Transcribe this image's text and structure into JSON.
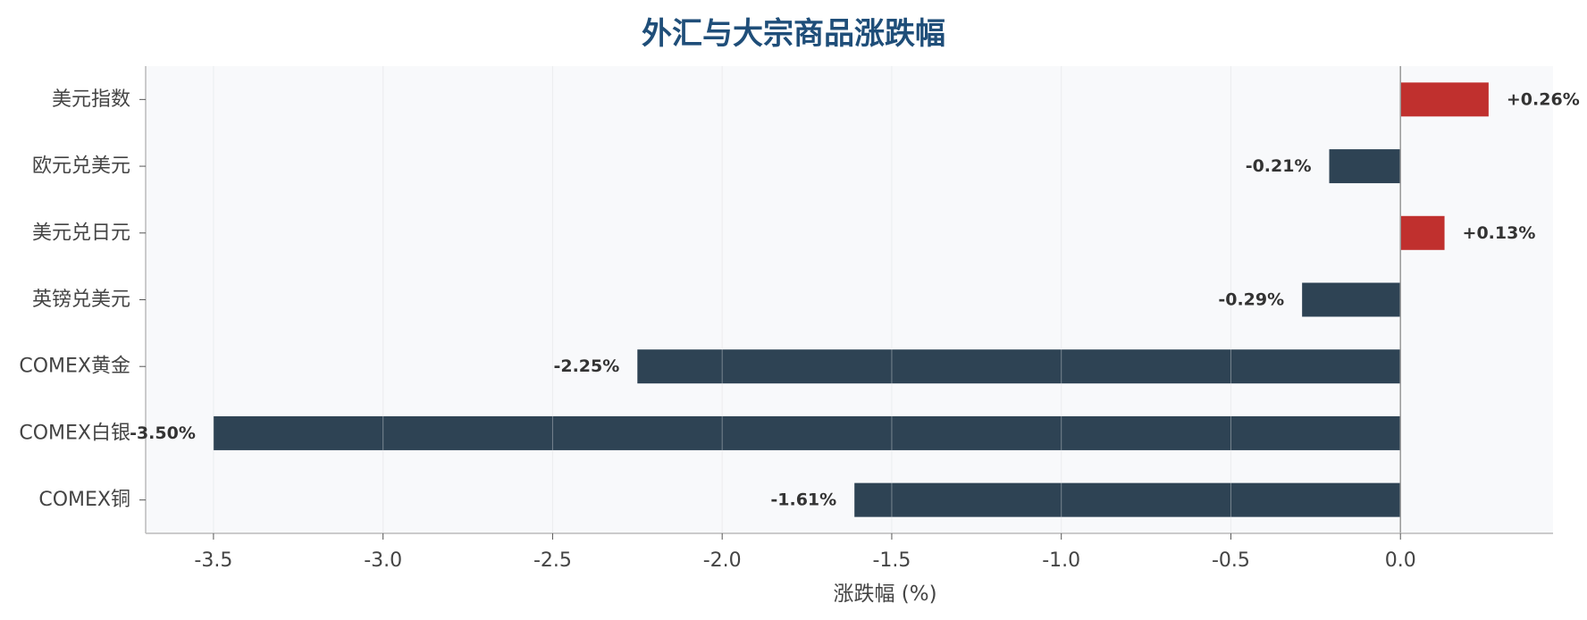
{
  "chart_data": {
    "type": "bar",
    "orientation": "horizontal",
    "title": "外汇与大宗商品涨跌幅",
    "xlabel": "涨跌幅 (%)",
    "ylabel": "",
    "categories": [
      "美元指数",
      "欧元兑美元",
      "美元兑日元",
      "英镑兑美元",
      "COMEX黄金",
      "COMEX白银",
      "COMEX铜"
    ],
    "values": [
      0.26,
      -0.21,
      0.13,
      -0.29,
      -2.25,
      -3.5,
      -1.61
    ],
    "data_labels": [
      "+0.26%",
      "-0.21%",
      "+0.13%",
      "-0.29%",
      "-2.25%",
      "-3.50%",
      "-1.61%"
    ],
    "xlim": [
      -3.7,
      0.45
    ],
    "xticks": [
      -3.5,
      -3.0,
      -2.5,
      -2.0,
      -1.5,
      -1.0,
      -0.5,
      0.0
    ],
    "xtick_labels": [
      "-3.5",
      "-3.0",
      "-2.5",
      "-2.0",
      "-1.5",
      "-1.0",
      "-0.5",
      "0.0"
    ],
    "grid": "vertical",
    "colors": {
      "positive": "#c0302e",
      "negative": "#2e4354",
      "plot_background": "#f8f9fb",
      "grid": "#e3e5e8",
      "zero_line": "#999999",
      "title": "#1f4e79"
    }
  }
}
